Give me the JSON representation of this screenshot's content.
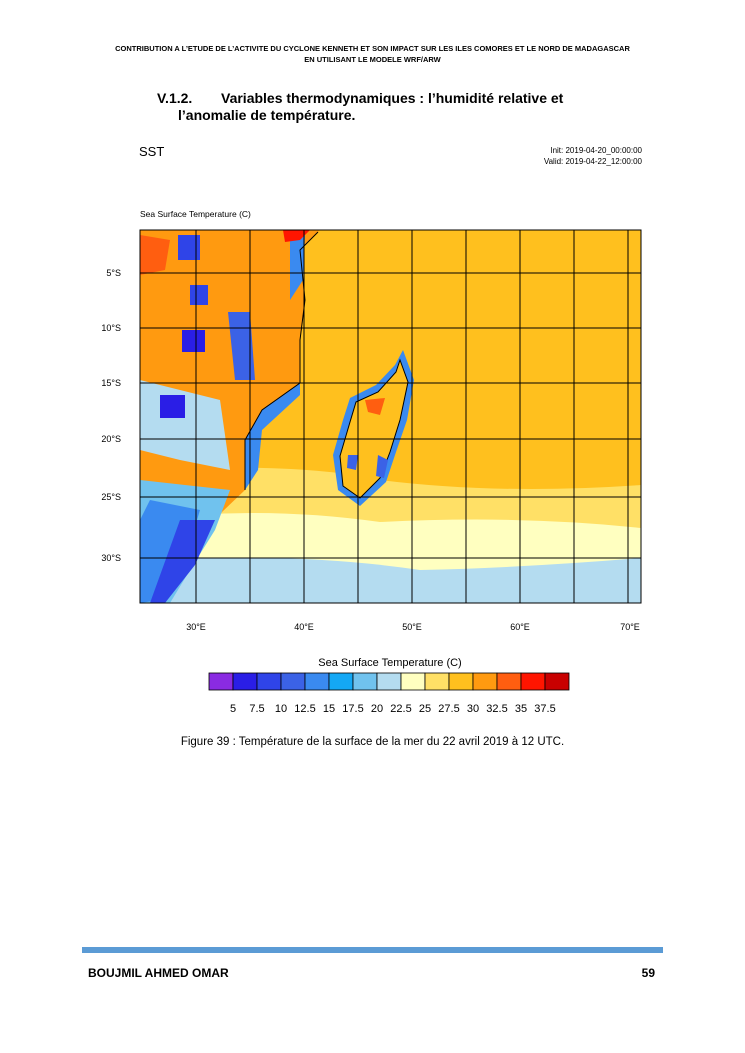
{
  "header": {
    "lines": [
      "CONTRIBUTION A L’ETUDE DE L’ACTIVITE DU CYCLONE KENNETH ET SON IMPACT SUR LES ILES COMORES ET LE NORD DE MADAGASCAR",
      "EN UTILISANT LE MODELE WRF/ARW"
    ]
  },
  "section": {
    "number": "V.1.2.",
    "title_lines": [
      "Variables thermodynamiques : l’humidité relative et",
      "l’anomalie de température."
    ]
  },
  "figure": {
    "title": "SST",
    "init": "Init: 2019-04-20_00:00:00",
    "valid": "Valid: 2019-04-22_12:00:00",
    "field_label": "Sea Surface Temperature   (C)",
    "lat_labels": [
      "5°S",
      "10°S",
      "15°S",
      "20°S",
      "25°S",
      "30°S"
    ],
    "lon_labels": [
      "30°E",
      "40°E",
      "50°E",
      "60°E",
      "70°E"
    ],
    "colorbar": {
      "title": "Sea Surface Temperature  (C)",
      "colors": [
        "#8a2be2",
        "#2a1ee6",
        "#2f44e8",
        "#3b62e6",
        "#3a8af0",
        "#14a8f5",
        "#70c2ee",
        "#b4dcf0",
        "#ffffc0",
        "#ffe066",
        "#ffc01e",
        "#ff9a10",
        "#ff5e10",
        "#ff1500",
        "#c80000"
      ],
      "labels": [
        "5",
        "7.5",
        "10",
        "12.5",
        "15",
        "17.5",
        "20",
        "22.5",
        "25",
        "27.5",
        "30",
        "32.5",
        "35",
        "37.5"
      ]
    },
    "caption": "Figure 39 : Température de la surface de la mer du 22 avril 2019 à 12 UTC."
  },
  "footer": {
    "author": "BOUJMIL AHMED OMAR",
    "page": "59"
  }
}
